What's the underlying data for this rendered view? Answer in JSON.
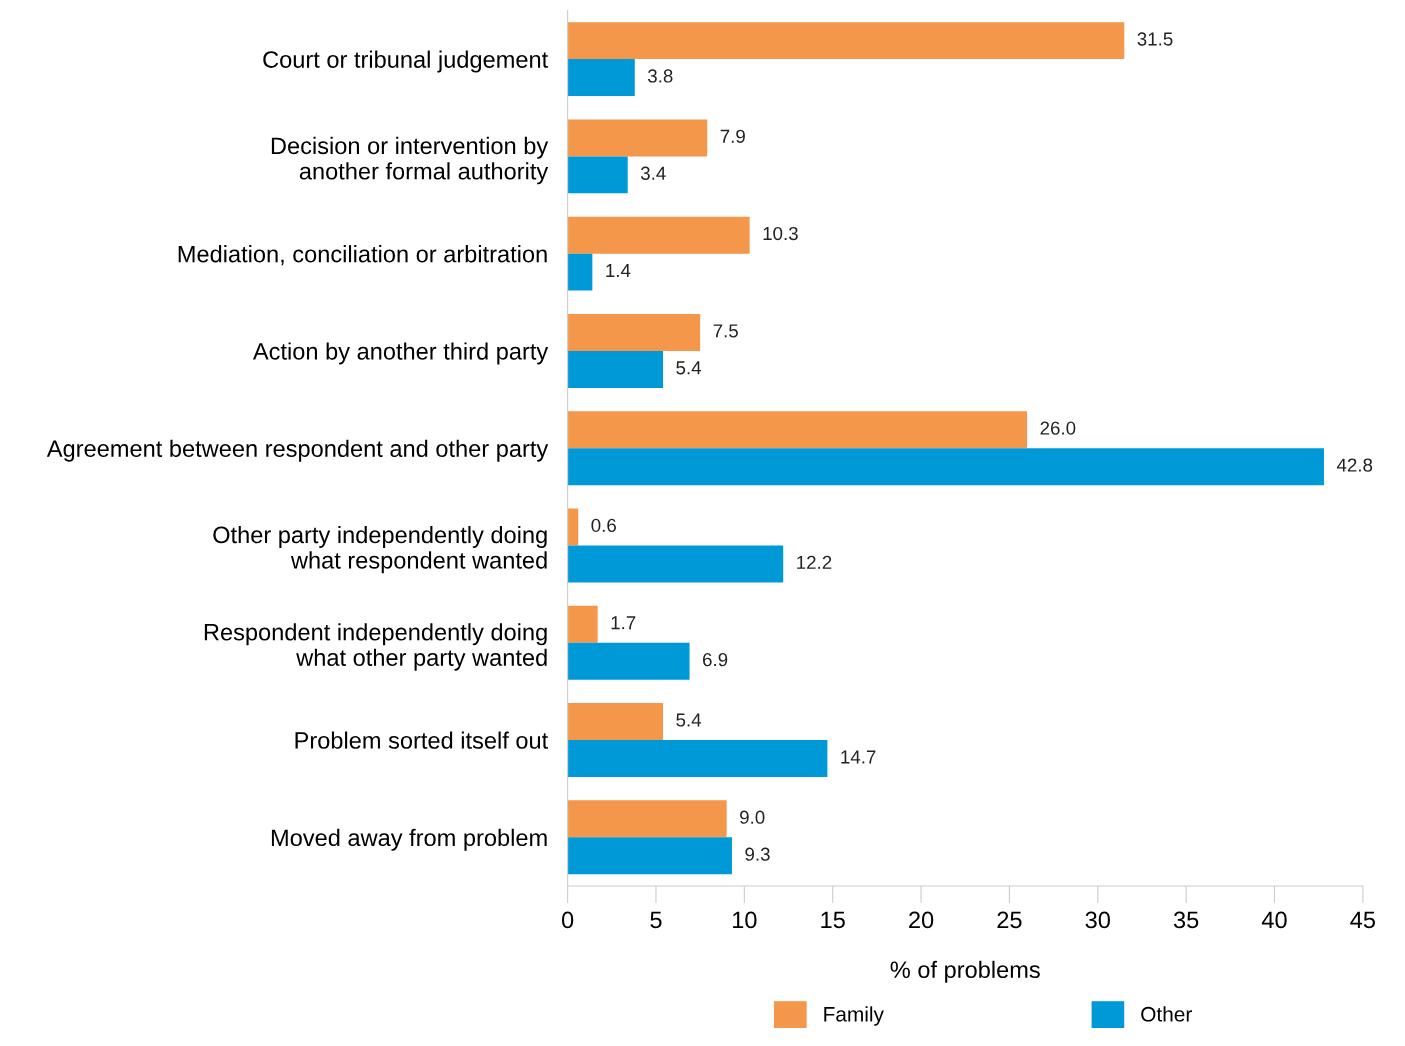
{
  "chart_data": {
    "type": "bar",
    "orientation": "horizontal",
    "categories": [
      "Court or tribunal judgement",
      "Decision or intervention by\nanother formal authority",
      "Mediation, conciliation or arbitration",
      "Action by another third party",
      "Agreement between respondent and other party",
      "Other party independently doing\nwhat respondent wanted",
      "Respondent independently doing\nwhat other party wanted",
      "Problem sorted itself out",
      "Moved away from problem"
    ],
    "series": [
      {
        "name": "Family",
        "color": "#f5974a",
        "values": [
          31.5,
          7.9,
          10.3,
          7.5,
          26.0,
          0.6,
          1.7,
          5.4,
          9.0
        ],
        "value_labels": [
          "31.5",
          "7.9",
          "10.3",
          "7.5",
          "26.0",
          "0.6",
          "1.7",
          "5.4",
          "9.0"
        ]
      },
      {
        "name": "Other",
        "color": "#0099d8",
        "values": [
          3.8,
          3.4,
          1.4,
          5.4,
          42.8,
          12.2,
          6.9,
          14.7,
          9.3
        ],
        "value_labels": [
          "3.8",
          "3.4",
          "1.4",
          "5.4",
          "42.8",
          "12.2",
          "6.9",
          "14.7",
          "9.3"
        ]
      }
    ],
    "xlabel": "% of problems",
    "xlim": [
      0,
      45
    ],
    "xticks": [
      0,
      5,
      10,
      15,
      20,
      25,
      30,
      35,
      40,
      45
    ],
    "grid": false,
    "legend": "bottom"
  }
}
